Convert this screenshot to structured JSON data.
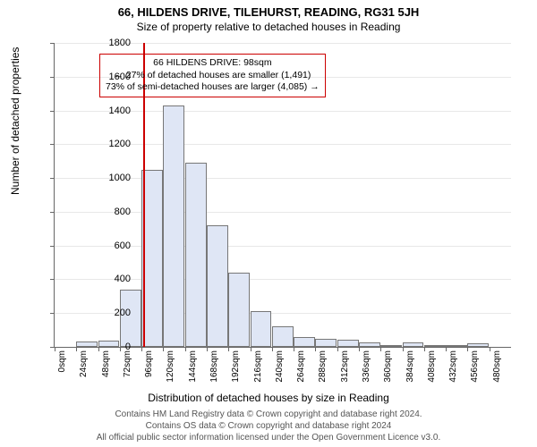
{
  "title_main": "66, HILDENS DRIVE, TILEHURST, READING, RG31 5JH",
  "title_sub": "Size of property relative to detached houses in Reading",
  "y_axis_label": "Number of detached properties",
  "x_axis_label": "Distribution of detached houses by size in Reading",
  "footer_line1": "Contains HM Land Registry data © Crown copyright and database right 2024.",
  "footer_line2": "Contains OS data © Crown copyright and database right 2024",
  "footer_line3": "All official public sector information licensed under the Open Government Licence v3.0.",
  "annotation": {
    "line1": "66 HILDENS DRIVE: 98sqm",
    "line2": "← 27% of detached houses are smaller (1,491)",
    "line3": "73% of semi-detached houses are larger (4,085) →",
    "border_color": "#cc0000"
  },
  "chart": {
    "type": "histogram",
    "ylim": [
      0,
      1800
    ],
    "ytick_step": 200,
    "x_categories": [
      "0sqm",
      "24sqm",
      "48sqm",
      "72sqm",
      "96sqm",
      "120sqm",
      "144sqm",
      "168sqm",
      "192sqm",
      "216sqm",
      "240sqm",
      "264sqm",
      "288sqm",
      "312sqm",
      "336sqm",
      "360sqm",
      "384sqm",
      "408sqm",
      "432sqm",
      "456sqm",
      "480sqm"
    ],
    "values": [
      0,
      30,
      35,
      340,
      1050,
      1430,
      1090,
      720,
      440,
      210,
      120,
      60,
      50,
      45,
      25,
      10,
      25,
      5,
      5,
      20,
      0
    ],
    "bar_fill": "#dfe6f5",
    "bar_border": "#777777",
    "background_color": "#ffffff",
    "grid_color": "#e8e8e8",
    "reference_line": {
      "x_value": 98,
      "x_max": 504,
      "color": "#cc0000",
      "width": 2
    }
  }
}
